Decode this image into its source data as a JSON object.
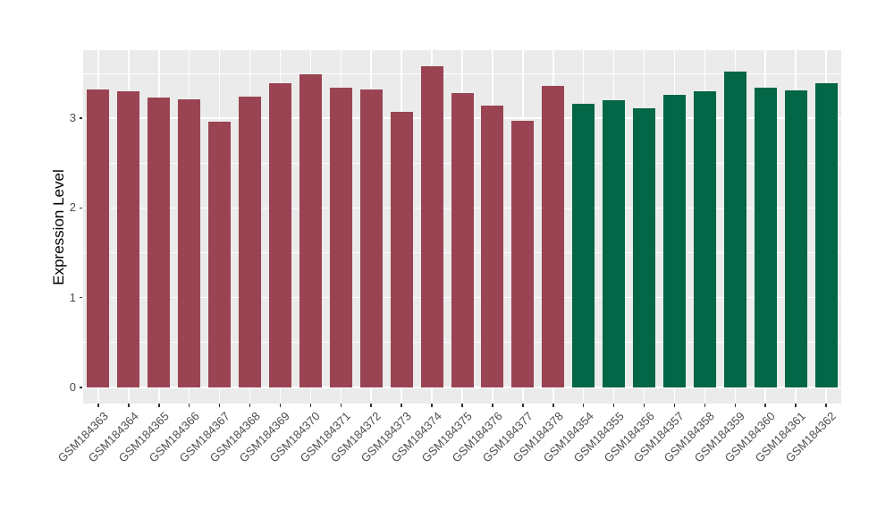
{
  "chart_data": {
    "type": "bar",
    "title": "",
    "xlabel": "",
    "ylabel": "Expression Level",
    "categories": [
      "GSM184363",
      "GSM184364",
      "GSM184365",
      "GSM184366",
      "GSM184367",
      "GSM184368",
      "GSM184369",
      "GSM184370",
      "GSM184371",
      "GSM184372",
      "GSM184373",
      "GSM184374",
      "GSM184375",
      "GSM184376",
      "GSM184377",
      "GSM184378",
      "GSM184354",
      "GSM184355",
      "GSM184356",
      "GSM184357",
      "GSM184358",
      "GSM184359",
      "GSM184360",
      "GSM184361",
      "GSM184362"
    ],
    "values": [
      3.32,
      3.3,
      3.23,
      3.21,
      2.96,
      3.24,
      3.39,
      3.49,
      3.34,
      3.32,
      3.07,
      3.58,
      3.28,
      3.14,
      2.97,
      3.36,
      3.16,
      3.2,
      3.11,
      3.26,
      3.3,
      3.52,
      3.34,
      3.31,
      3.39
    ],
    "group_index": [
      0,
      0,
      0,
      0,
      0,
      0,
      0,
      0,
      0,
      0,
      0,
      0,
      0,
      0,
      0,
      0,
      1,
      1,
      1,
      1,
      1,
      1,
      1,
      1,
      1
    ],
    "group_colors": [
      "#9a4453",
      "#026647"
    ],
    "yticks": [
      0,
      1,
      2,
      3
    ],
    "minor_gridlines": [
      0.5,
      1.5,
      2.5,
      3.5
    ],
    "ylim": [
      -0.18,
      3.76
    ],
    "grid": "white major and minor gridlines on gray panel",
    "legend": "none",
    "panel_background": "#ebebeb",
    "gridline_color": "#ffffff",
    "tick_label_color": "#4d4d4d",
    "axis_title_color": "#000000"
  }
}
